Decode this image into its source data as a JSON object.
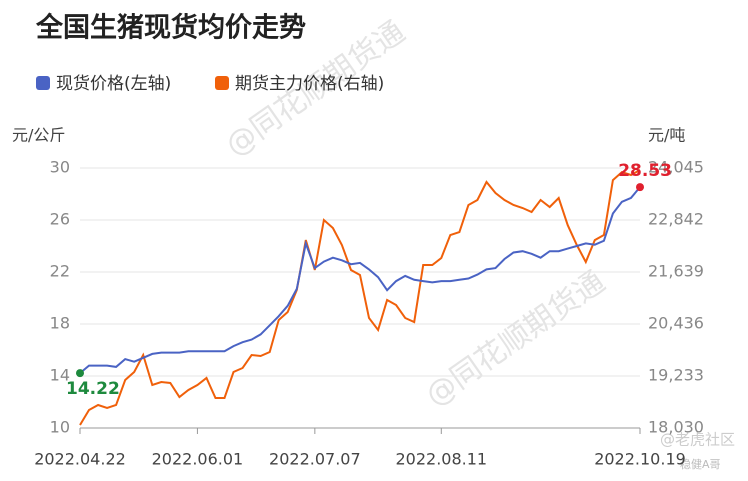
{
  "chart_data": {
    "type": "line",
    "title": "全国生猪现货均价走势",
    "y_label": "元/公斤",
    "y2_label": "元/吨",
    "watermarks": [
      "@同花顺期货通",
      "@同花顺期货通",
      "@老虎社区",
      "稳健A哥"
    ],
    "categories": [
      "2022.04.22",
      null,
      null,
      null,
      null,
      null,
      null,
      null,
      null,
      null,
      null,
      null,
      null,
      "2022.06.01",
      null,
      null,
      null,
      null,
      null,
      null,
      null,
      null,
      null,
      null,
      null,
      null,
      "2022.07.07",
      null,
      null,
      null,
      null,
      null,
      null,
      null,
      null,
      null,
      null,
      null,
      null,
      null,
      "2022.08.11",
      null,
      null,
      null,
      null,
      null,
      null,
      null,
      null,
      null,
      null,
      null,
      null,
      null,
      null,
      null,
      null,
      null,
      null,
      null,
      null,
      null,
      "2022.10.19"
    ],
    "series": [
      {
        "name": "现货价格(左轴)",
        "color": "#4a63c4",
        "axis": "y",
        "annotation_color": [
          "#1e8a3e",
          "#e0202e"
        ],
        "values": [
          14.22,
          14.8,
          14.8,
          14.8,
          14.7,
          15.3,
          15.1,
          15.4,
          15.7,
          15.8,
          15.8,
          15.8,
          15.9,
          15.9,
          15.9,
          15.9,
          15.9,
          16.3,
          16.6,
          16.8,
          17.2,
          17.9,
          18.6,
          19.4,
          20.7,
          24.2,
          22.3,
          22.8,
          23.1,
          22.9,
          22.6,
          22.7,
          22.2,
          21.6,
          20.6,
          21.3,
          21.7,
          21.4,
          21.3,
          21.2,
          21.3,
          21.3,
          21.4,
          21.5,
          21.8,
          22.2,
          22.3,
          23.0,
          23.5,
          23.6,
          23.4,
          23.1,
          23.6,
          23.6,
          23.8,
          24.0,
          24.2,
          24.1,
          24.4,
          26.5,
          27.4,
          27.7,
          28.53
        ]
      },
      {
        "name": "期货主力价格(右轴)",
        "color": "#f0600a",
        "axis": "y2",
        "values": [
          18100,
          18446,
          18562,
          18493,
          18562,
          19140,
          19325,
          19719,
          19025,
          19094,
          19071,
          18747,
          18910,
          19025,
          19187,
          18724,
          18724,
          19325,
          19418,
          19719,
          19696,
          19788,
          20528,
          20713,
          21222,
          22378,
          21685,
          22841,
          22656,
          22263,
          21685,
          21569,
          20574,
          20297,
          20991,
          20875,
          20574,
          20482,
          21800,
          21800,
          21962,
          22494,
          22563,
          23188,
          23304,
          23720,
          23466,
          23304,
          23188,
          23119,
          23026,
          23304,
          23142,
          23350,
          22725,
          22263,
          21870,
          22378,
          22494,
          23766,
          23951,
          23882,
          23998
        ]
      }
    ],
    "ylim": [
      10,
      30
    ],
    "yticks": [
      10,
      14,
      18,
      22,
      26,
      30
    ],
    "y2lim": [
      18030,
      24045
    ],
    "y2ticks": [
      {
        "value": 18030,
        "label": "18,030"
      },
      {
        "value": 19233,
        "label": "19,233"
      },
      {
        "value": 20436,
        "label": "20,436"
      },
      {
        "value": 21639,
        "label": "21,639"
      },
      {
        "value": 22842,
        "label": "22,842"
      },
      {
        "value": 24045,
        "label": "24,045"
      }
    ],
    "grid": true
  }
}
